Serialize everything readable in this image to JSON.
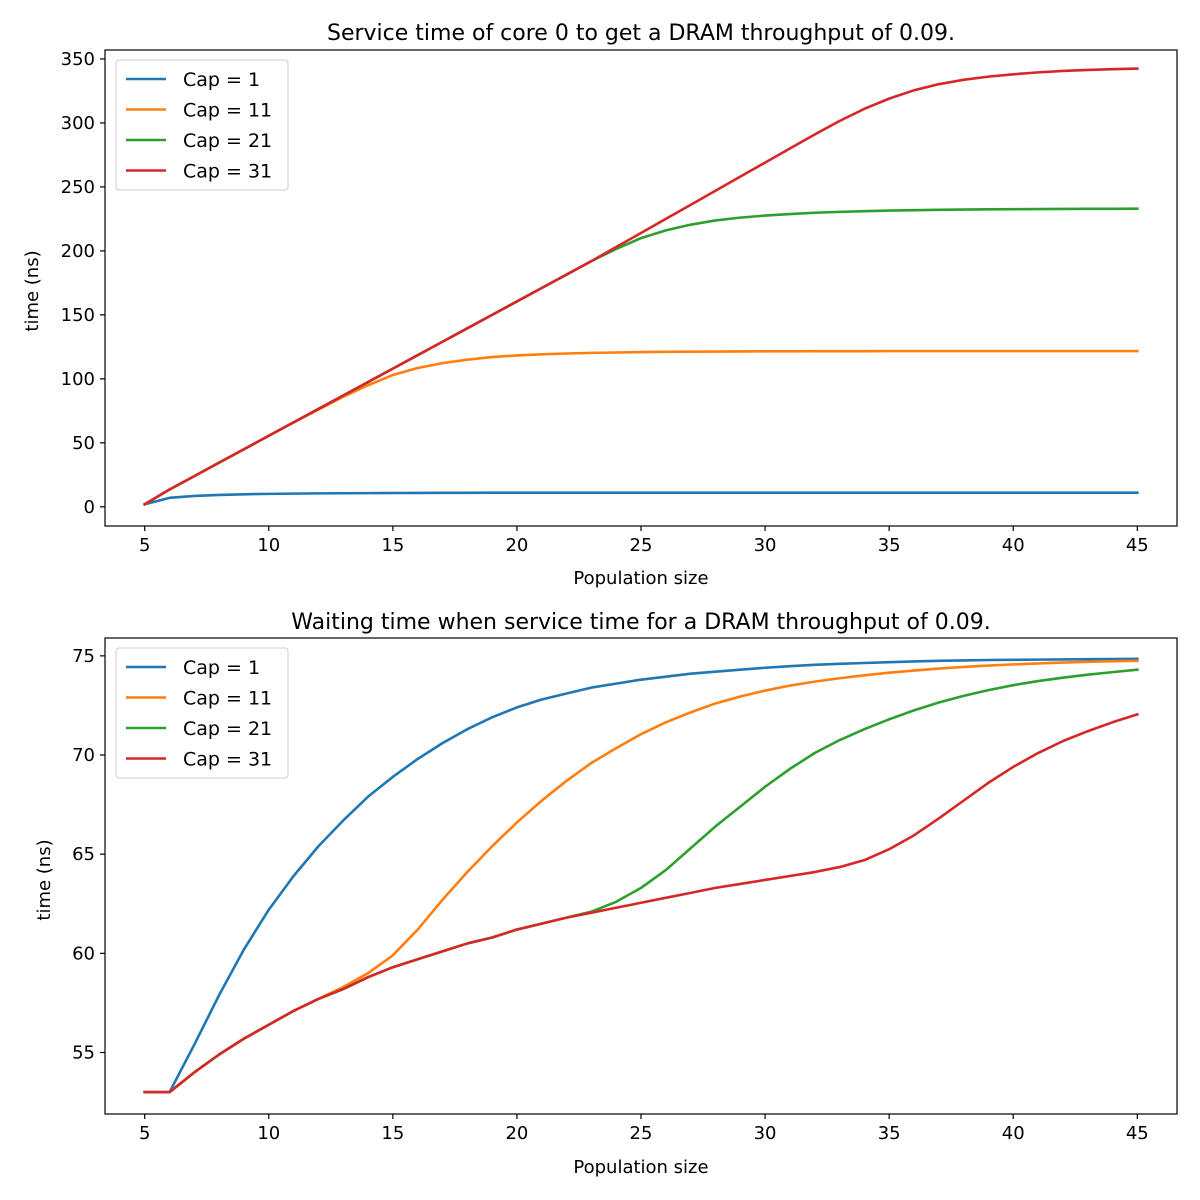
{
  "chart_data": [
    {
      "type": "line",
      "title": "Service time of core 0 to get a DRAM throughput of 0.09.",
      "xlabel": "Population size",
      "ylabel": "time (ns)",
      "xlim": [
        3.4,
        46.6
      ],
      "ylim": [
        -15,
        357
      ],
      "xticks": [
        5,
        10,
        15,
        20,
        25,
        30,
        35,
        40,
        45
      ],
      "yticks": [
        0,
        50,
        100,
        150,
        200,
        250,
        300,
        350
      ],
      "legend_position": "upper-left",
      "x": [
        5,
        6,
        7,
        8,
        9,
        10,
        11,
        12,
        13,
        14,
        15,
        16,
        17,
        18,
        19,
        20,
        21,
        22,
        23,
        24,
        25,
        26,
        27,
        28,
        29,
        30,
        31,
        32,
        33,
        34,
        35,
        36,
        37,
        38,
        39,
        40,
        41,
        42,
        43,
        44,
        45
      ],
      "series": [
        {
          "name": "Cap = 1",
          "color": "#1f77b4",
          "values": [
            2,
            7,
            8.5,
            9.3,
            9.8,
            10.1,
            10.3,
            10.5,
            10.6,
            10.7,
            10.8,
            10.85,
            10.9,
            10.95,
            11,
            11,
            11,
            11,
            11,
            11,
            11,
            11,
            11,
            11,
            11,
            11,
            11,
            11,
            11,
            11,
            11,
            11,
            11,
            11,
            11,
            11,
            11,
            11,
            11,
            11,
            11
          ]
        },
        {
          "name": "Cap = 11",
          "color": "#ff7f0e",
          "values": [
            2,
            13.5,
            24,
            34.5,
            45,
            55.5,
            66,
            76,
            86,
            95,
            103,
            108.5,
            112.3,
            115,
            117,
            118.3,
            119.2,
            119.8,
            120.3,
            120.6,
            120.9,
            121.1,
            121.2,
            121.3,
            121.4,
            121.5,
            121.5,
            121.6,
            121.6,
            121.6,
            121.7,
            121.7,
            121.7,
            121.7,
            121.7,
            121.7,
            121.7,
            121.7,
            121.7,
            121.7,
            121.7
          ]
        },
        {
          "name": "Cap = 21",
          "color": "#2ca02c",
          "values": [
            2,
            13.5,
            24,
            34.5,
            45,
            55.5,
            66,
            76.5,
            87,
            97.5,
            108,
            118.5,
            129,
            139.5,
            150,
            160.5,
            171,
            181.5,
            192,
            201.5,
            210,
            216,
            220.5,
            223.8,
            226,
            227.6,
            228.8,
            229.8,
            230.5,
            231,
            231.5,
            231.8,
            232.1,
            232.3,
            232.5,
            232.6,
            232.7,
            232.8,
            232.9,
            232.9,
            233
          ]
        },
        {
          "name": "Cap = 31",
          "color": "#d62728",
          "values": [
            2,
            13.5,
            24,
            34.5,
            45,
            55.5,
            66,
            76.5,
            87,
            97.5,
            108,
            118.5,
            129,
            139.5,
            150,
            160.5,
            171,
            181.5,
            192,
            203,
            214,
            225,
            236,
            247,
            258,
            269,
            280,
            291,
            301.5,
            311,
            319,
            325.5,
            330.3,
            333.7,
            336.2,
            338,
            339.5,
            340.6,
            341.4,
            342,
            342.5
          ]
        }
      ]
    },
    {
      "type": "line",
      "title": "Waiting time when service time for a DRAM throughput of 0.09.",
      "xlabel": "Population size",
      "ylabel": "time (ns)",
      "xlim": [
        3.4,
        46.6
      ],
      "ylim": [
        51.9,
        75.9
      ],
      "xticks": [
        5,
        10,
        15,
        20,
        25,
        30,
        35,
        40,
        45
      ],
      "yticks": [
        55,
        60,
        65,
        70,
        75
      ],
      "legend_position": "upper-left",
      "x": [
        5,
        6,
        7,
        8,
        9,
        10,
        11,
        12,
        13,
        14,
        15,
        16,
        17,
        18,
        19,
        20,
        21,
        22,
        23,
        24,
        25,
        26,
        27,
        28,
        29,
        30,
        31,
        32,
        33,
        34,
        35,
        36,
        37,
        38,
        39,
        40,
        41,
        42,
        43,
        44,
        45
      ],
      "series": [
        {
          "name": "Cap = 1",
          "color": "#1f77b4",
          "values": [
            53,
            53,
            55.4,
            57.9,
            60.2,
            62.2,
            63.9,
            65.4,
            66.7,
            67.9,
            68.9,
            69.8,
            70.6,
            71.3,
            71.9,
            72.4,
            72.8,
            73.1,
            73.4,
            73.6,
            73.8,
            73.95,
            74.1,
            74.2,
            74.3,
            74.4,
            74.48,
            74.55,
            74.6,
            74.64,
            74.68,
            74.72,
            74.75,
            74.77,
            74.79,
            74.8,
            74.81,
            74.82,
            74.83,
            74.84,
            74.85
          ]
        },
        {
          "name": "Cap = 11",
          "color": "#ff7f0e",
          "values": [
            53,
            53,
            54,
            54.9,
            55.7,
            56.4,
            57.1,
            57.7,
            58.3,
            59,
            59.9,
            61.2,
            62.7,
            64.1,
            65.4,
            66.6,
            67.7,
            68.7,
            69.6,
            70.35,
            71.05,
            71.65,
            72.15,
            72.6,
            72.95,
            73.25,
            73.5,
            73.7,
            73.87,
            74.02,
            74.15,
            74.26,
            74.36,
            74.44,
            74.51,
            74.57,
            74.62,
            74.66,
            74.7,
            74.73,
            74.75
          ]
        },
        {
          "name": "Cap = 21",
          "color": "#2ca02c",
          "values": [
            53,
            53,
            54,
            54.9,
            55.7,
            56.4,
            57.1,
            57.7,
            58.2,
            58.8,
            59.3,
            59.7,
            60.1,
            60.5,
            60.8,
            61.2,
            61.5,
            61.8,
            62.1,
            62.6,
            63.3,
            64.2,
            65.3,
            66.4,
            67.4,
            68.4,
            69.3,
            70.1,
            70.75,
            71.3,
            71.8,
            72.25,
            72.65,
            72.98,
            73.27,
            73.52,
            73.73,
            73.9,
            74.05,
            74.18,
            74.3
          ]
        },
        {
          "name": "Cap = 31",
          "color": "#d62728",
          "values": [
            53,
            53,
            54,
            54.9,
            55.7,
            56.4,
            57.1,
            57.7,
            58.2,
            58.8,
            59.3,
            59.7,
            60.1,
            60.5,
            60.8,
            61.2,
            61.5,
            61.8,
            62.05,
            62.3,
            62.55,
            62.8,
            63.05,
            63.3,
            63.5,
            63.7,
            63.9,
            64.1,
            64.35,
            64.7,
            65.25,
            65.95,
            66.8,
            67.7,
            68.6,
            69.4,
            70.1,
            70.7,
            71.2,
            71.65,
            72.05
          ]
        }
      ]
    }
  ]
}
